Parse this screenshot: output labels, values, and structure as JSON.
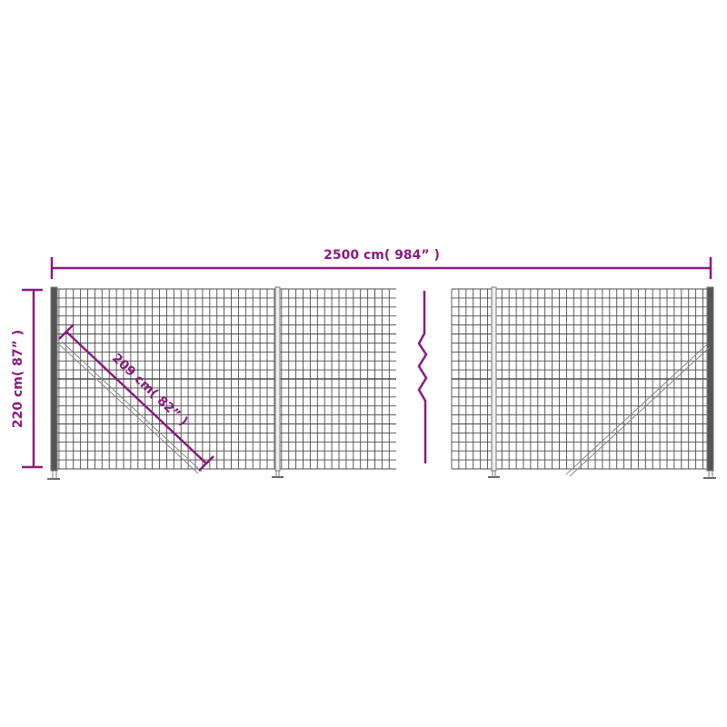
{
  "dimensions": {
    "length_label": "2500 cm( 984” )",
    "height_label": "220 cm( 87” )",
    "brace_label": "209 cm( 82” )"
  },
  "colors": {
    "dimension": "#8b1a7e",
    "mesh": "#4a4a4a",
    "post": "#777777"
  }
}
